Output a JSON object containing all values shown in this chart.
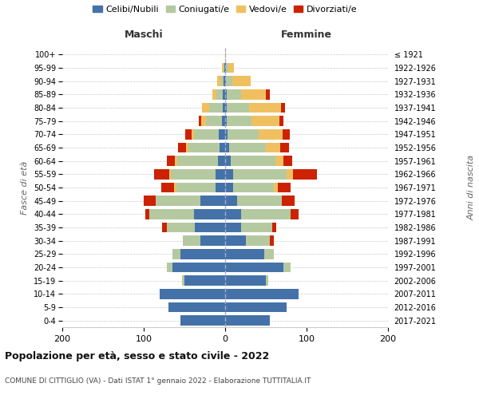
{
  "age_groups": [
    "100+",
    "95-99",
    "90-94",
    "85-89",
    "80-84",
    "75-79",
    "70-74",
    "65-69",
    "60-64",
    "55-59",
    "50-54",
    "45-49",
    "40-44",
    "35-39",
    "30-34",
    "25-29",
    "20-24",
    "15-19",
    "10-14",
    "5-9",
    "0-4"
  ],
  "birth_years": [
    "≤ 1921",
    "1922-1926",
    "1927-1931",
    "1932-1936",
    "1937-1941",
    "1942-1946",
    "1947-1951",
    "1952-1956",
    "1957-1961",
    "1962-1966",
    "1967-1971",
    "1972-1976",
    "1977-1981",
    "1982-1986",
    "1987-1991",
    "1992-1996",
    "1997-2001",
    "2002-2006",
    "2007-2011",
    "2012-2016",
    "2017-2021"
  ],
  "colors": {
    "celibi": "#4472a8",
    "coniugati": "#b5c9a0",
    "vedovi": "#f0c060",
    "divorziati": "#cc2200"
  },
  "male": {
    "celibi": [
      0,
      1,
      2,
      3,
      3,
      4,
      8,
      7,
      9,
      12,
      12,
      30,
      38,
      37,
      30,
      55,
      65,
      50,
      80,
      70,
      55
    ],
    "coniugati": [
      0,
      1,
      3,
      8,
      17,
      20,
      30,
      38,
      50,
      55,
      48,
      55,
      55,
      35,
      22,
      10,
      7,
      3,
      0,
      0,
      0
    ],
    "vedovi": [
      0,
      2,
      5,
      5,
      8,
      5,
      3,
      3,
      3,
      2,
      3,
      0,
      0,
      0,
      0,
      0,
      0,
      0,
      0,
      0,
      0
    ],
    "divorziati": [
      0,
      0,
      0,
      0,
      0,
      3,
      8,
      10,
      10,
      18,
      15,
      15,
      5,
      5,
      0,
      0,
      0,
      0,
      0,
      0,
      0
    ]
  },
  "female": {
    "nubili": [
      0,
      1,
      1,
      2,
      2,
      2,
      3,
      5,
      7,
      10,
      10,
      15,
      20,
      20,
      25,
      48,
      72,
      50,
      90,
      75,
      55
    ],
    "coniugati": [
      0,
      3,
      8,
      18,
      27,
      30,
      38,
      45,
      55,
      65,
      50,
      55,
      60,
      38,
      30,
      12,
      8,
      3,
      0,
      0,
      0
    ],
    "vedovi": [
      1,
      7,
      22,
      30,
      40,
      35,
      30,
      18,
      10,
      8,
      5,
      0,
      0,
      0,
      0,
      0,
      0,
      0,
      0,
      0,
      0
    ],
    "divorziati": [
      0,
      0,
      0,
      5,
      5,
      5,
      8,
      10,
      10,
      30,
      15,
      15,
      10,
      5,
      5,
      0,
      0,
      0,
      0,
      0,
      0
    ]
  },
  "title": "Popolazione per età, sesso e stato civile - 2022",
  "subtitle": "COMUNE DI CITTIGLIO (VA) - Dati ISTAT 1° gennaio 2022 - Elaborazione TUTTITALIA.IT",
  "xlabel_left": "Maschi",
  "xlabel_right": "Femmine",
  "ylabel_left": "Fasce di età",
  "ylabel_right": "Anni di nascita",
  "xlim": 200,
  "background_color": "#ffffff",
  "grid_color": "#cccccc",
  "legend_labels": [
    "Celibi/Nubili",
    "Coniugati/e",
    "Vedovi/e",
    "Divorziati/e"
  ]
}
